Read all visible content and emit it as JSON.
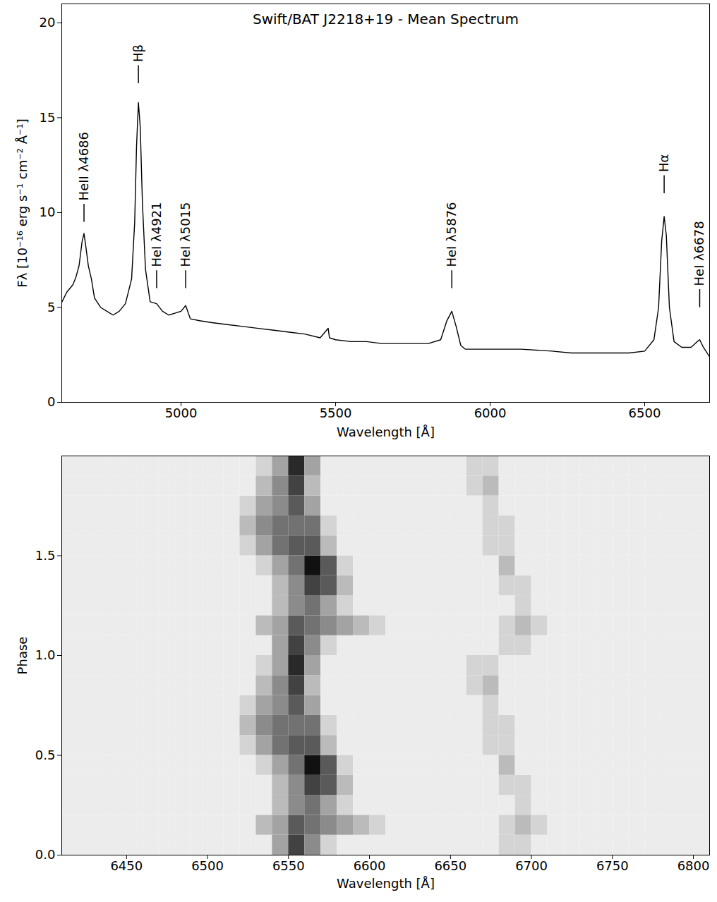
{
  "chart_data": [
    {
      "type": "line",
      "title": "Swift/BAT J2218+19 - Mean Spectrum",
      "xlabel": "Wavelength [Å]",
      "ylabel": "Fλ [10⁻¹⁶ erg s⁻¹ cm⁻² Å⁻¹]",
      "xlim": [
        4614,
        6710
      ],
      "ylim": [
        0,
        21
      ],
      "xticks": [
        5000,
        5500,
        6000,
        6500
      ],
      "yticks": [
        0,
        5,
        10,
        15,
        20
      ],
      "color": "#000000",
      "x": [
        4615,
        4630,
        4650,
        4660,
        4670,
        4680,
        4686,
        4692,
        4700,
        4710,
        4720,
        4740,
        4760,
        4780,
        4800,
        4820,
        4840,
        4850,
        4856,
        4862,
        4868,
        4875,
        4885,
        4900,
        4921,
        4940,
        4960,
        4980,
        5000,
        5015,
        5030,
        5060,
        5100,
        5150,
        5200,
        5250,
        5300,
        5350,
        5400,
        5450,
        5476,
        5480,
        5500,
        5550,
        5600,
        5650,
        5700,
        5750,
        5800,
        5840,
        5860,
        5876,
        5890,
        5905,
        5920,
        6000,
        6100,
        6200,
        6262,
        6300,
        6400,
        6450,
        6500,
        6530,
        6545,
        6555,
        6563,
        6570,
        6580,
        6595,
        6620,
        6650,
        6670,
        6678,
        6690,
        6710
      ],
      "values": [
        5.3,
        5.8,
        6.2,
        6.6,
        7.2,
        8.5,
        8.9,
        8.2,
        7.2,
        6.5,
        5.5,
        5.0,
        4.8,
        4.6,
        4.8,
        5.2,
        6.5,
        9.5,
        13.5,
        15.8,
        14.5,
        10.5,
        7.0,
        5.3,
        5.2,
        4.8,
        4.6,
        4.7,
        4.8,
        5.1,
        4.4,
        4.3,
        4.2,
        4.1,
        4.0,
        3.9,
        3.8,
        3.7,
        3.6,
        3.4,
        3.9,
        3.4,
        3.3,
        3.2,
        3.2,
        3.1,
        3.1,
        3.1,
        3.1,
        3.3,
        4.3,
        4.8,
        4.0,
        3.0,
        2.8,
        2.8,
        2.8,
        2.7,
        2.6,
        2.6,
        2.6,
        2.6,
        2.7,
        3.3,
        5.0,
        8.5,
        9.8,
        8.8,
        5.0,
        3.2,
        2.9,
        2.9,
        3.2,
        3.3,
        2.9,
        2.4
      ],
      "annotations": [
        {
          "text": "HeII λ4686",
          "x": 4686,
          "y": 9.5
        },
        {
          "text": "Hβ",
          "x": 4862,
          "y": 16.8
        },
        {
          "text": "HeI λ4921",
          "x": 4921,
          "y": 6.0
        },
        {
          "text": "HeI λ5015",
          "x": 5015,
          "y": 6.0
        },
        {
          "text": "HeI λ5876",
          "x": 5876,
          "y": 6.0
        },
        {
          "text": "Hα",
          "x": 6563,
          "y": 11.0
        },
        {
          "text": "HeI λ6678",
          "x": 6678,
          "y": 5.0
        }
      ]
    },
    {
      "type": "heatmap",
      "xlabel": "Wavelength [Å]",
      "ylabel": "Phase",
      "xlim": [
        6410,
        6810
      ],
      "ylim": [
        0,
        2
      ],
      "xticks": [
        6450,
        6500,
        6550,
        6600,
        6650,
        6700,
        6750,
        6800
      ],
      "yticks": [
        {
          "value": 0,
          "label": "0.0"
        },
        0.5,
        {
          "value": 1,
          "label": "1.0"
        },
        1.5
      ],
      "x": [
        6415,
        6425,
        6435,
        6445,
        6455,
        6465,
        6475,
        6485,
        6495,
        6505,
        6515,
        6525,
        6535,
        6545,
        6555,
        6565,
        6575,
        6585,
        6595,
        6605,
        6615,
        6625,
        6635,
        6645,
        6655,
        6665,
        6675,
        6685,
        6695,
        6705,
        6715,
        6725,
        6735,
        6745,
        6755,
        6765,
        6775,
        6785,
        6795,
        6805
      ],
      "y": [
        0.05,
        0.15,
        0.25,
        0.35,
        0.45,
        0.55,
        0.65,
        0.75,
        0.85,
        0.95,
        1.05,
        1.15,
        1.25,
        1.35,
        1.45,
        1.55,
        1.65,
        1.75,
        1.85,
        1.95
      ],
      "z": [
        [
          0,
          0,
          0,
          0,
          0,
          0,
          0,
          0,
          0,
          0,
          0,
          0,
          0,
          3,
          7,
          4,
          1,
          0,
          0,
          0,
          0,
          0,
          0,
          0,
          0,
          0,
          0,
          1,
          1,
          0,
          0,
          0,
          0,
          0,
          0,
          0,
          0,
          0,
          0,
          0
        ],
        [
          0,
          0,
          0,
          0,
          0,
          0,
          0,
          0,
          0,
          0,
          0,
          0,
          2,
          3,
          6,
          5,
          4,
          3,
          2,
          1,
          0,
          0,
          0,
          0,
          0,
          0,
          0,
          1,
          2,
          1,
          0,
          0,
          0,
          0,
          0,
          0,
          0,
          0,
          0,
          0
        ],
        [
          0,
          0,
          0,
          0,
          0,
          0,
          0,
          0,
          0,
          0,
          0,
          0,
          0,
          2,
          4,
          5,
          3,
          1,
          0,
          0,
          0,
          0,
          0,
          0,
          0,
          0,
          0,
          0,
          1,
          0,
          0,
          0,
          0,
          0,
          0,
          0,
          0,
          0,
          0,
          0
        ],
        [
          0,
          0,
          0,
          0,
          0,
          0,
          0,
          0,
          0,
          0,
          0,
          0,
          0,
          2,
          4,
          7,
          6,
          2,
          0,
          0,
          0,
          0,
          0,
          0,
          0,
          0,
          0,
          1,
          1,
          0,
          0,
          0,
          0,
          0,
          0,
          0,
          0,
          0,
          0,
          0
        ],
        [
          0,
          0,
          0,
          0,
          0,
          0,
          0,
          0,
          0,
          0,
          0,
          0,
          1,
          3,
          5,
          9,
          6,
          1,
          0,
          0,
          0,
          0,
          0,
          0,
          0,
          0,
          0,
          2,
          0,
          0,
          0,
          0,
          0,
          0,
          0,
          0,
          0,
          0,
          0,
          0
        ],
        [
          0,
          0,
          0,
          0,
          0,
          0,
          0,
          0,
          0,
          0,
          0,
          1,
          3,
          5,
          6,
          6,
          2,
          0,
          0,
          0,
          0,
          0,
          0,
          0,
          0,
          0,
          1,
          1,
          0,
          0,
          0,
          0,
          0,
          0,
          0,
          0,
          0,
          0,
          0,
          0
        ],
        [
          0,
          0,
          0,
          0,
          0,
          0,
          0,
          0,
          0,
          0,
          0,
          2,
          4,
          5,
          5,
          5,
          1,
          0,
          0,
          0,
          0,
          0,
          0,
          0,
          0,
          0,
          1,
          1,
          0,
          0,
          0,
          0,
          0,
          0,
          0,
          0,
          0,
          0,
          0,
          0
        ],
        [
          0,
          0,
          0,
          0,
          0,
          0,
          0,
          0,
          0,
          0,
          0,
          1,
          3,
          4,
          6,
          3,
          0,
          0,
          0,
          0,
          0,
          0,
          0,
          0,
          0,
          0,
          1,
          0,
          0,
          0,
          0,
          0,
          0,
          0,
          0,
          0,
          0,
          0,
          0,
          0
        ],
        [
          0,
          0,
          0,
          0,
          0,
          0,
          0,
          0,
          0,
          0,
          0,
          0,
          2,
          4,
          7,
          2,
          0,
          0,
          0,
          0,
          0,
          0,
          0,
          0,
          0,
          1,
          2,
          0,
          0,
          0,
          0,
          0,
          0,
          0,
          0,
          0,
          0,
          0,
          0,
          0
        ],
        [
          0,
          0,
          0,
          0,
          0,
          0,
          0,
          0,
          0,
          0,
          0,
          0,
          1,
          3,
          8,
          3,
          0,
          0,
          0,
          0,
          0,
          0,
          0,
          0,
          0,
          1,
          1,
          0,
          0,
          0,
          0,
          0,
          0,
          0,
          0,
          0,
          0,
          0,
          0,
          0
        ],
        [
          0,
          0,
          0,
          0,
          0,
          0,
          0,
          0,
          0,
          0,
          0,
          0,
          0,
          3,
          7,
          4,
          1,
          0,
          0,
          0,
          0,
          0,
          0,
          0,
          0,
          0,
          0,
          1,
          1,
          0,
          0,
          0,
          0,
          0,
          0,
          0,
          0,
          0,
          0,
          0
        ],
        [
          0,
          0,
          0,
          0,
          0,
          0,
          0,
          0,
          0,
          0,
          0,
          0,
          2,
          3,
          6,
          5,
          4,
          3,
          2,
          1,
          0,
          0,
          0,
          0,
          0,
          0,
          0,
          1,
          2,
          1,
          0,
          0,
          0,
          0,
          0,
          0,
          0,
          0,
          0,
          0
        ],
        [
          0,
          0,
          0,
          0,
          0,
          0,
          0,
          0,
          0,
          0,
          0,
          0,
          0,
          2,
          4,
          5,
          3,
          1,
          0,
          0,
          0,
          0,
          0,
          0,
          0,
          0,
          0,
          0,
          1,
          0,
          0,
          0,
          0,
          0,
          0,
          0,
          0,
          0,
          0,
          0
        ],
        [
          0,
          0,
          0,
          0,
          0,
          0,
          0,
          0,
          0,
          0,
          0,
          0,
          0,
          2,
          4,
          7,
          6,
          2,
          0,
          0,
          0,
          0,
          0,
          0,
          0,
          0,
          0,
          1,
          1,
          0,
          0,
          0,
          0,
          0,
          0,
          0,
          0,
          0,
          0,
          0
        ],
        [
          0,
          0,
          0,
          0,
          0,
          0,
          0,
          0,
          0,
          0,
          0,
          0,
          1,
          3,
          5,
          9,
          6,
          1,
          0,
          0,
          0,
          0,
          0,
          0,
          0,
          0,
          0,
          2,
          0,
          0,
          0,
          0,
          0,
          0,
          0,
          0,
          0,
          0,
          0,
          0
        ],
        [
          0,
          0,
          0,
          0,
          0,
          0,
          0,
          0,
          0,
          0,
          0,
          1,
          3,
          5,
          6,
          6,
          2,
          0,
          0,
          0,
          0,
          0,
          0,
          0,
          0,
          0,
          1,
          1,
          0,
          0,
          0,
          0,
          0,
          0,
          0,
          0,
          0,
          0,
          0,
          0
        ],
        [
          0,
          0,
          0,
          0,
          0,
          0,
          0,
          0,
          0,
          0,
          0,
          2,
          4,
          5,
          5,
          5,
          1,
          0,
          0,
          0,
          0,
          0,
          0,
          0,
          0,
          0,
          1,
          1,
          0,
          0,
          0,
          0,
          0,
          0,
          0,
          0,
          0,
          0,
          0,
          0
        ],
        [
          0,
          0,
          0,
          0,
          0,
          0,
          0,
          0,
          0,
          0,
          0,
          1,
          3,
          4,
          6,
          3,
          0,
          0,
          0,
          0,
          0,
          0,
          0,
          0,
          0,
          0,
          1,
          0,
          0,
          0,
          0,
          0,
          0,
          0,
          0,
          0,
          0,
          0,
          0,
          0
        ],
        [
          0,
          0,
          0,
          0,
          0,
          0,
          0,
          0,
          0,
          0,
          0,
          0,
          2,
          4,
          7,
          2,
          0,
          0,
          0,
          0,
          0,
          0,
          0,
          0,
          0,
          1,
          2,
          0,
          0,
          0,
          0,
          0,
          0,
          0,
          0,
          0,
          0,
          0,
          0,
          0
        ],
        [
          0,
          0,
          0,
          0,
          0,
          0,
          0,
          0,
          0,
          0,
          0,
          0,
          1,
          3,
          8,
          3,
          0,
          0,
          0,
          0,
          0,
          0,
          0,
          0,
          0,
          1,
          1,
          0,
          0,
          0,
          0,
          0,
          0,
          0,
          0,
          0,
          0,
          0,
          0,
          0
        ]
      ]
    }
  ]
}
